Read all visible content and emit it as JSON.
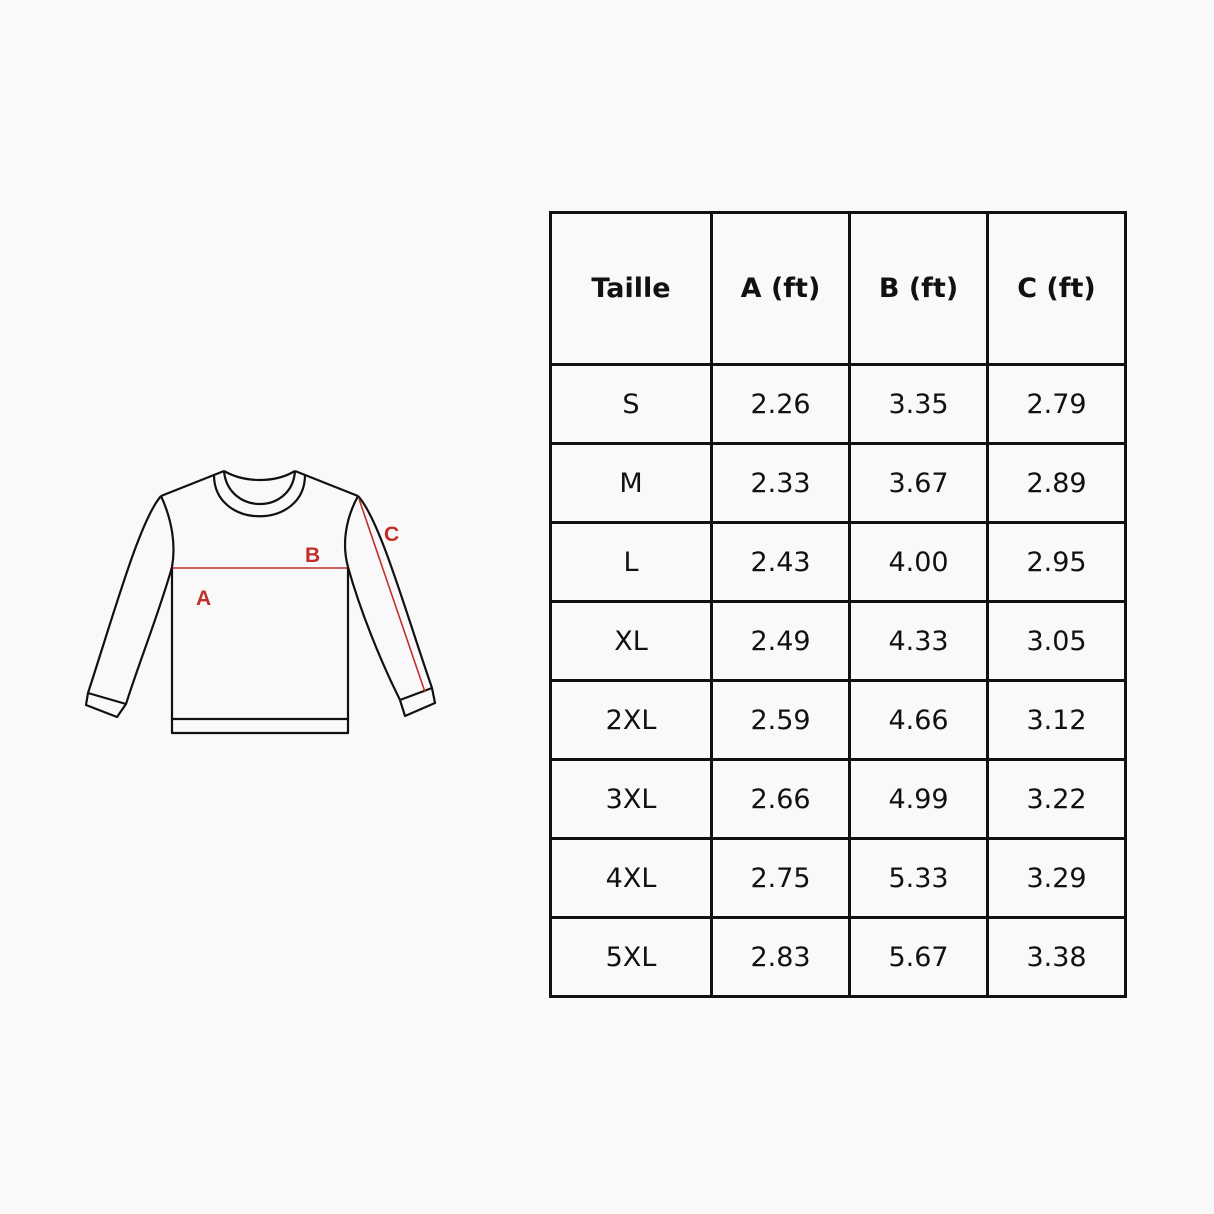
{
  "diagram": {
    "labels": {
      "a": "A",
      "b": "B",
      "c": "C"
    },
    "accent_color": "#c0302a",
    "outline_color": "#111111"
  },
  "table": {
    "headers": [
      "Taille",
      "A (ft)",
      "B (ft)",
      "C (ft)"
    ],
    "rows": [
      [
        "S",
        "2.26",
        "3.35",
        "2.79"
      ],
      [
        "M",
        "2.33",
        "3.67",
        "2.89"
      ],
      [
        "L",
        "2.43",
        "4.00",
        "2.95"
      ],
      [
        "XL",
        "2.49",
        "4.33",
        "3.05"
      ],
      [
        "2XL",
        "2.59",
        "4.66",
        "3.12"
      ],
      [
        "3XL",
        "2.66",
        "4.99",
        "3.22"
      ],
      [
        "4XL",
        "2.75",
        "5.33",
        "3.29"
      ],
      [
        "5XL",
        "2.83",
        "5.67",
        "3.38"
      ]
    ]
  }
}
